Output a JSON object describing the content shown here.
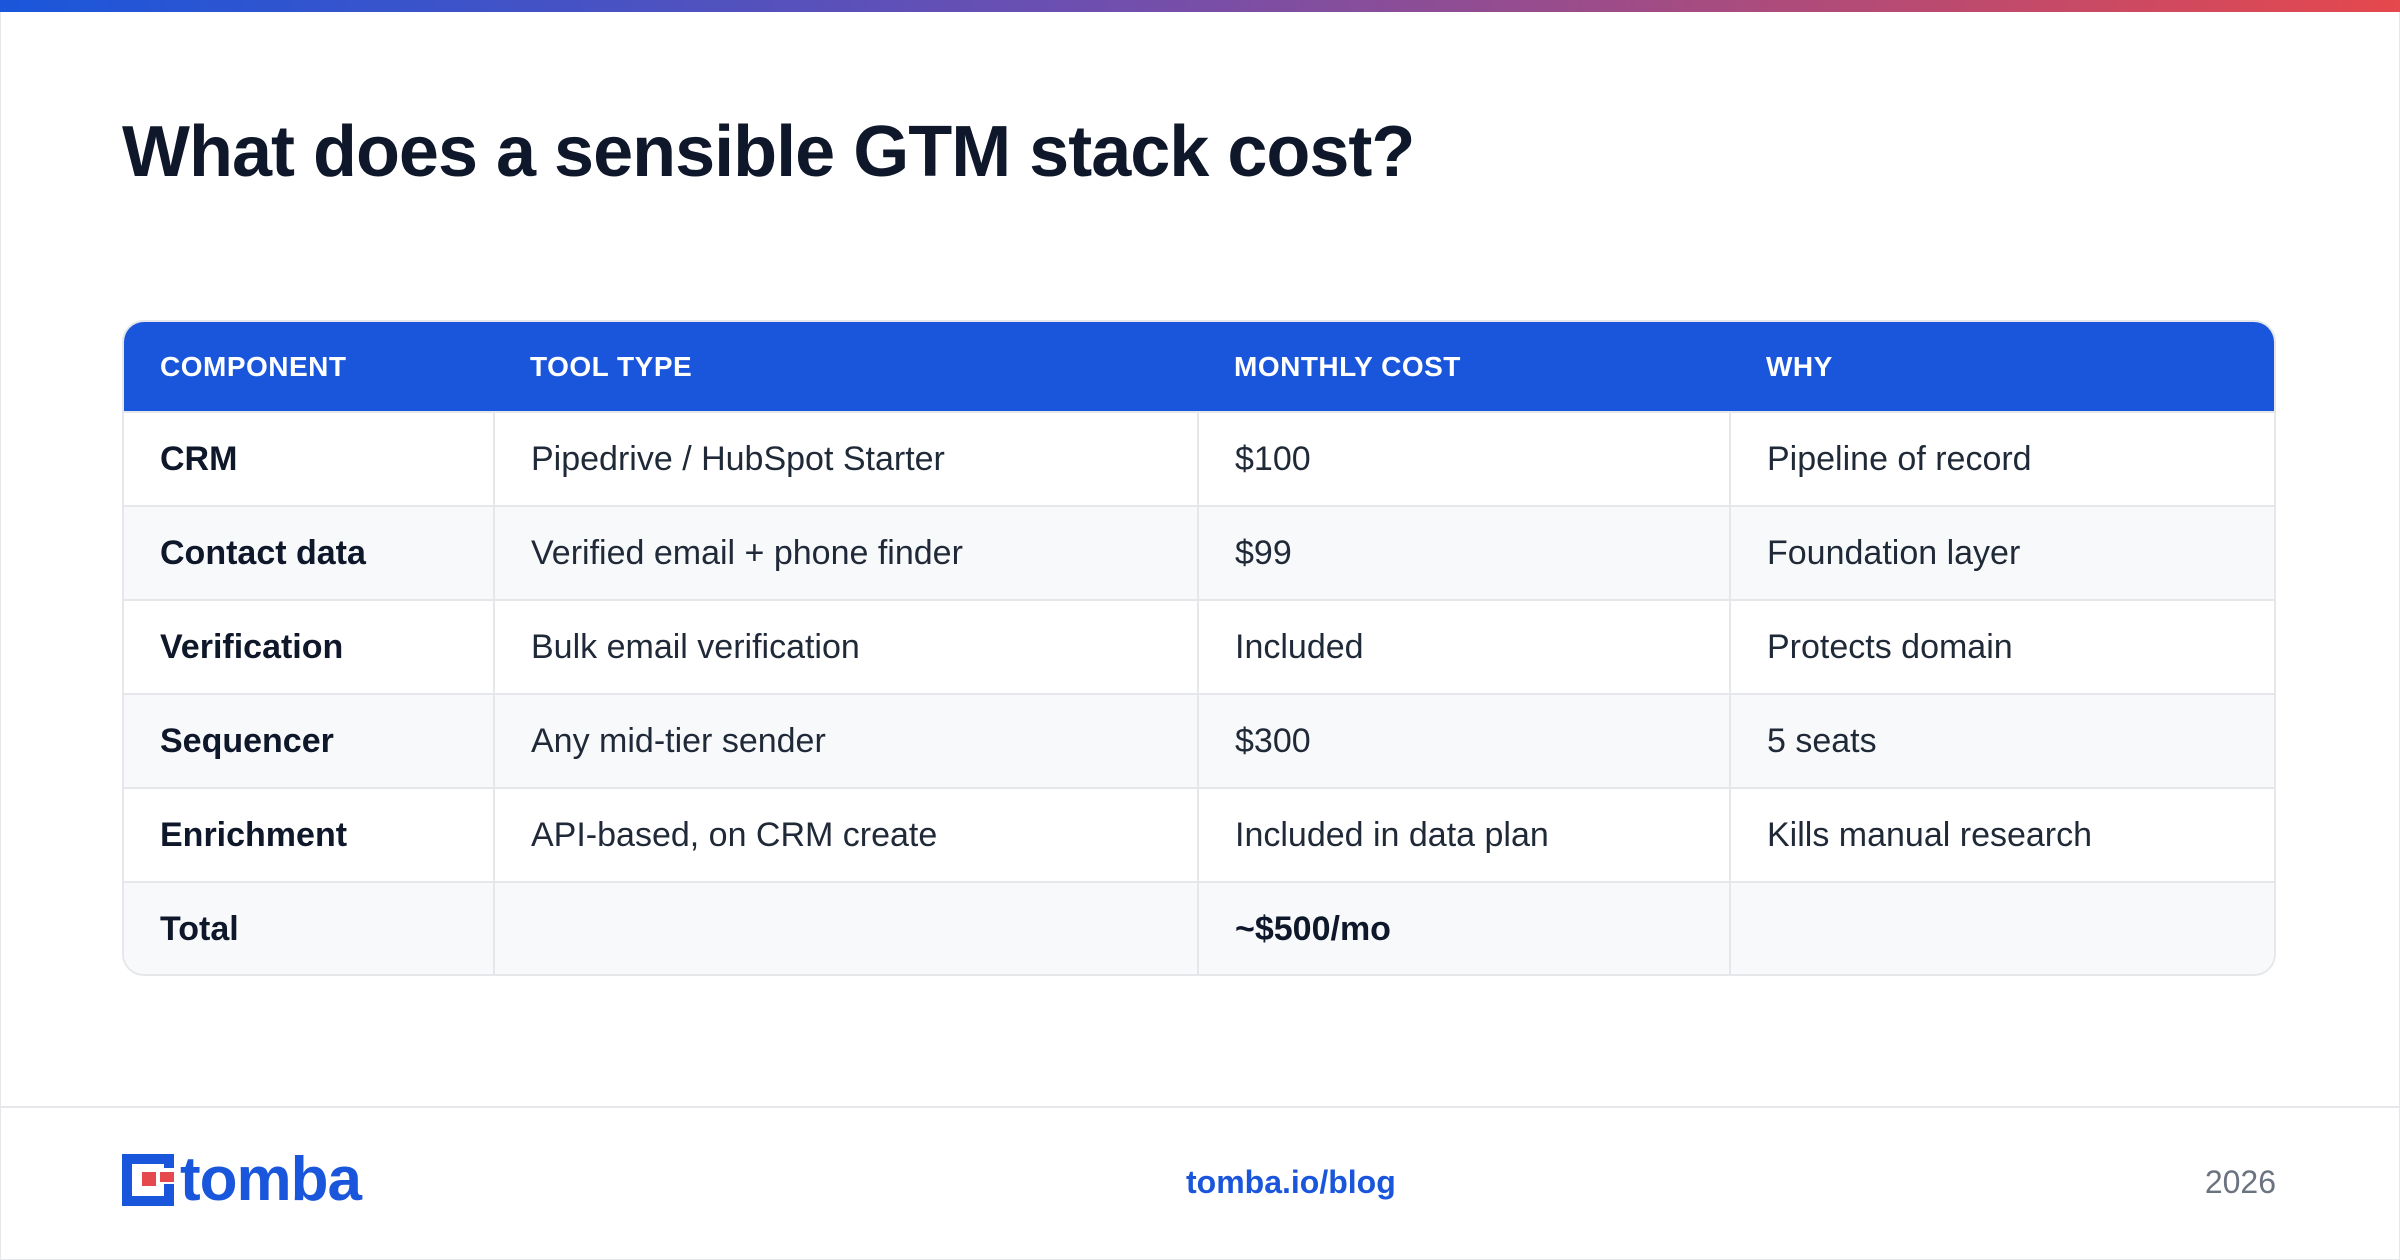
{
  "title": "What does a sensible GTM stack cost?",
  "table": {
    "headers": [
      "COMPONENT",
      "TOOL TYPE",
      "MONTHLY COST",
      "WHY"
    ],
    "rows": [
      [
        "CRM",
        "Pipedrive / HubSpot Starter",
        "$100",
        "Pipeline of record"
      ],
      [
        "Contact data",
        "Verified email + phone finder",
        "$99",
        "Foundation layer"
      ],
      [
        "Verification",
        "Bulk email verification",
        "Included",
        "Protects domain"
      ],
      [
        "Sequencer",
        "Any mid-tier sender",
        "$300",
        "5 seats"
      ],
      [
        "Enrichment",
        "API-based, on CRM create",
        "Included in data plan",
        "Kills manual research"
      ],
      [
        "Total",
        "",
        "~$500/mo",
        ""
      ]
    ]
  },
  "footer": {
    "logo_text": "tomba",
    "link": "tomba.io/blog",
    "year": "2026"
  },
  "colors": {
    "accent": "#1a56db",
    "logo_red": "#e5484d",
    "title": "#0f172a"
  }
}
